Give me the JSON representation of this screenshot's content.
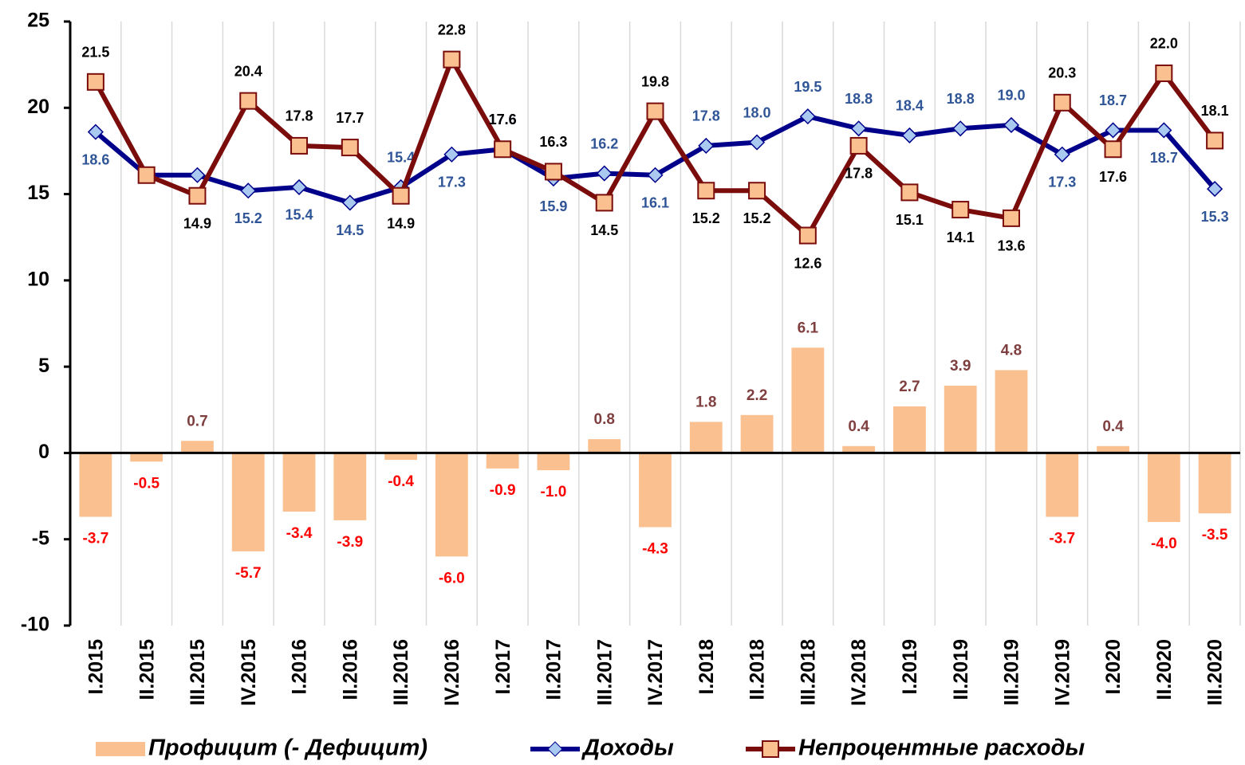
{
  "chart_data": {
    "type": "bar_line",
    "categories": [
      "I.2015",
      "II.2015",
      "III.2015",
      "IV.2015",
      "I.2016",
      "II.2016",
      "III.2016",
      "IV.2016",
      "I.2017",
      "II.2017",
      "III.2017",
      "IV.2017",
      "I.2018",
      "II.2018",
      "III.2018",
      "IV.2018",
      "I.2019",
      "II.2019",
      "III.2019",
      "IV.2019",
      "I.2020",
      "II.2020",
      "III.2020"
    ],
    "series": [
      {
        "name": "Профицит (- Дефицит)",
        "type": "bar",
        "color": "#fac090",
        "values": [
          -3.7,
          -0.5,
          0.7,
          -5.7,
          -3.4,
          -3.9,
          -0.4,
          -6.0,
          -0.9,
          -1.0,
          0.8,
          -4.3,
          1.8,
          2.2,
          6.1,
          0.4,
          2.7,
          3.9,
          4.8,
          -3.7,
          0.4,
          -4.0,
          -3.5
        ],
        "value_labels": [
          "-3.7",
          "-0.5",
          "0.7",
          "-5.7",
          "-3.4",
          "-3.9",
          "-0.4",
          "-6.0",
          "-0.9",
          "-1.0",
          "0.8",
          "-4.3",
          "1.8",
          "2.2",
          "6.1",
          "0.4",
          "2.7",
          "3.9",
          "4.8",
          "-3.7",
          "0.4",
          "-4.0",
          "-3.5"
        ]
      },
      {
        "name": "Доходы",
        "type": "line",
        "color": "#00008b",
        "marker": "diamond",
        "values": [
          18.6,
          16.1,
          16.1,
          15.2,
          15.4,
          14.5,
          15.4,
          17.3,
          17.6,
          15.9,
          16.2,
          16.1,
          17.8,
          18.0,
          19.5,
          18.8,
          18.4,
          18.8,
          19.0,
          17.3,
          18.7,
          18.7,
          15.3
        ],
        "value_labels": [
          "18.6",
          null,
          null,
          "15.2",
          "15.4",
          "14.5",
          "15.4",
          "17.3",
          "17.6",
          "15.9",
          "16.2",
          "16.1",
          "17.8",
          "18.0",
          "19.5",
          "18.8",
          "18.4",
          "18.8",
          "19.0",
          "17.3",
          "18.7",
          "18.7",
          "15.3"
        ]
      },
      {
        "name": "Непроцентные расходы",
        "type": "line",
        "color": "#7b0c0c",
        "marker": "square",
        "values": [
          21.5,
          16.1,
          14.9,
          20.4,
          17.8,
          17.7,
          14.9,
          22.8,
          17.6,
          16.3,
          14.5,
          19.8,
          15.2,
          15.2,
          12.6,
          17.8,
          15.1,
          14.1,
          13.6,
          20.3,
          17.6,
          22.0,
          18.1
        ],
        "value_labels": [
          "21.5",
          null,
          "14.9",
          "20.4",
          "17.8",
          "17.7",
          "14.9",
          "22.8",
          "17.6",
          "16.3",
          "14.5",
          "19.8",
          "15.2",
          "15.2",
          "12.6",
          "17.8",
          "15.1",
          "14.1",
          "13.6",
          "20.3",
          "17.6",
          "22.0",
          "18.1"
        ]
      }
    ],
    "ylim": [
      -10,
      25
    ],
    "yticks": [
      -10,
      -5,
      0,
      5,
      10,
      15,
      20,
      25
    ],
    "grid": true,
    "legend": "bottom"
  }
}
